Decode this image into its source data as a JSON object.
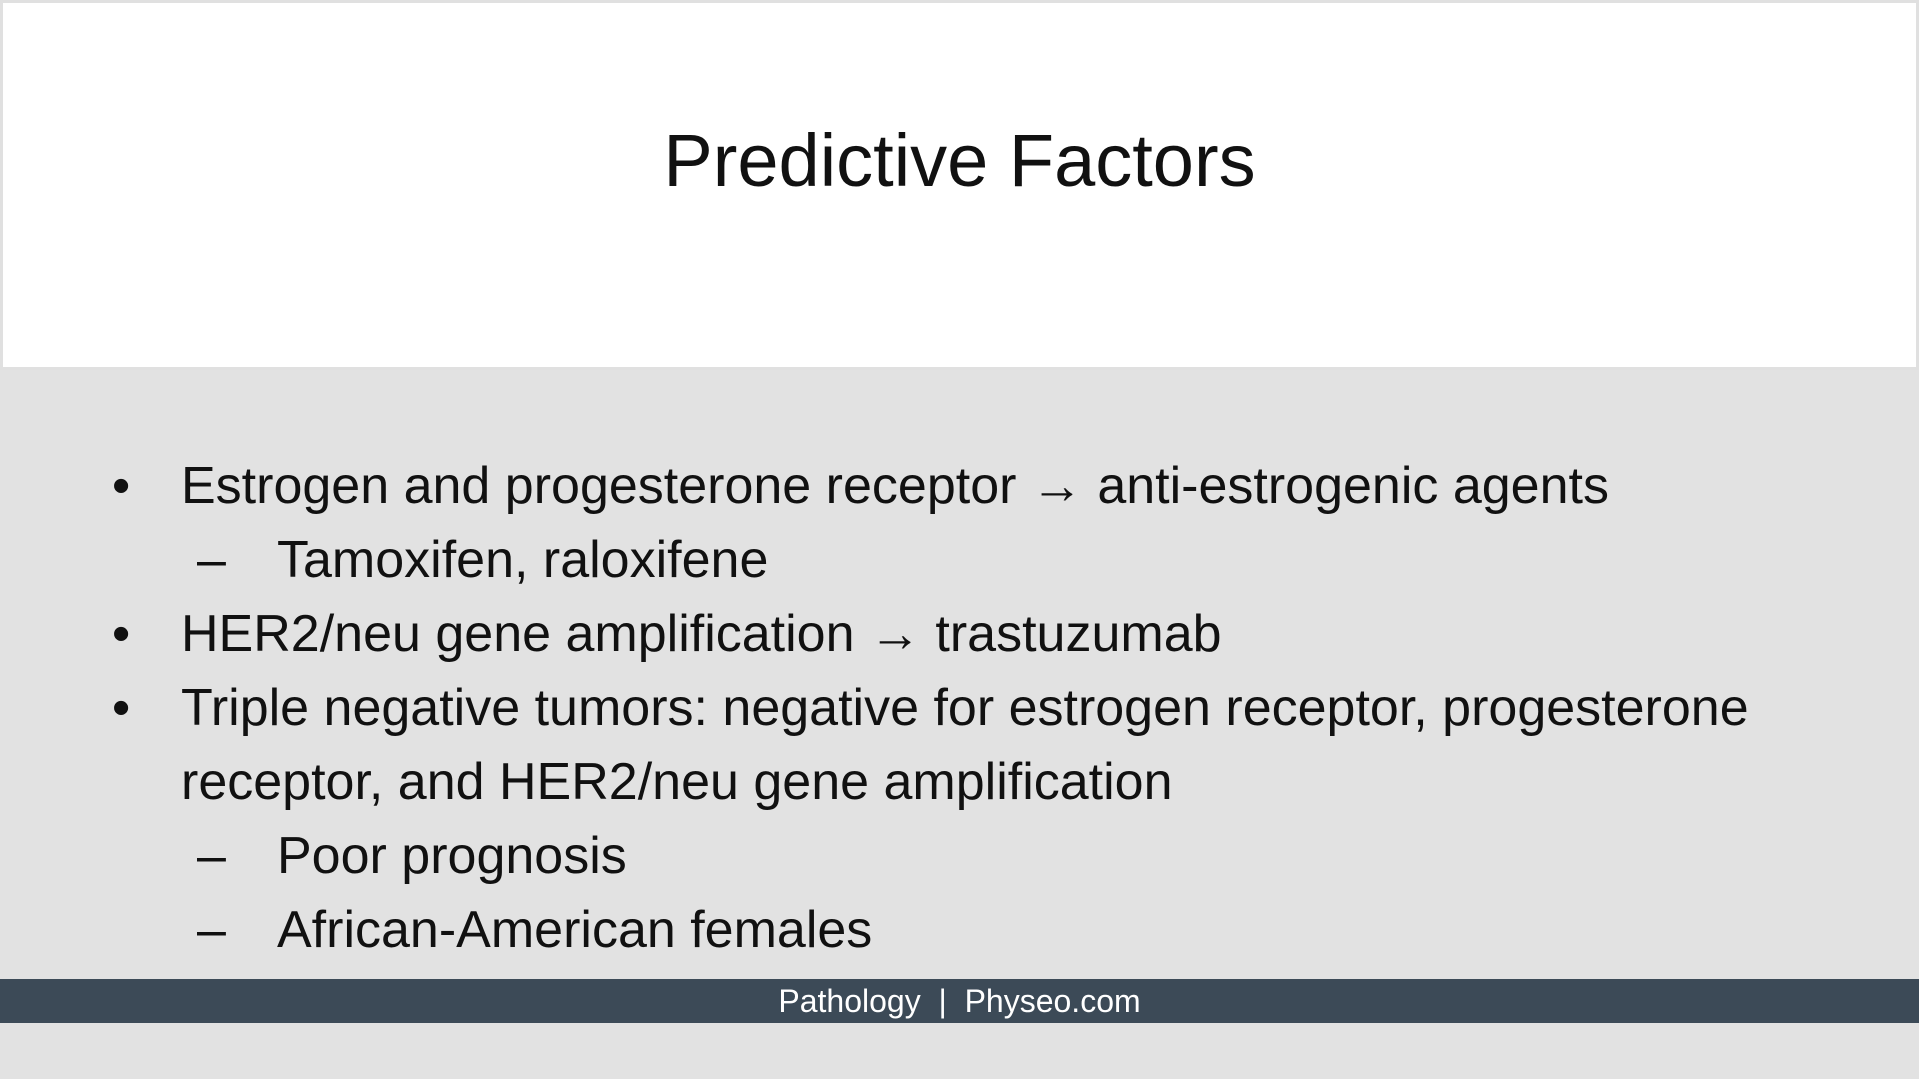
{
  "slide": {
    "title": "Predictive Factors",
    "bullets": [
      {
        "marker": "•",
        "text": "Estrogen and progesterone receptor → anti-estrogenic agents"
      },
      {
        "marker": "–",
        "text": "Tamoxifen, raloxifene"
      },
      {
        "marker": "•",
        "text": "HER2/neu gene amplification → trastuzumab"
      },
      {
        "marker": "•",
        "text": "Triple negative tumors: negative for estrogen receptor, progesterone"
      },
      {
        "marker": "",
        "text": "receptor, and HER2/neu gene amplification"
      },
      {
        "marker": "–",
        "text": "Poor prognosis"
      },
      {
        "marker": "–",
        "text": "African-American females"
      }
    ]
  },
  "footer": {
    "text": "Pathology  |  Physeo.com"
  }
}
